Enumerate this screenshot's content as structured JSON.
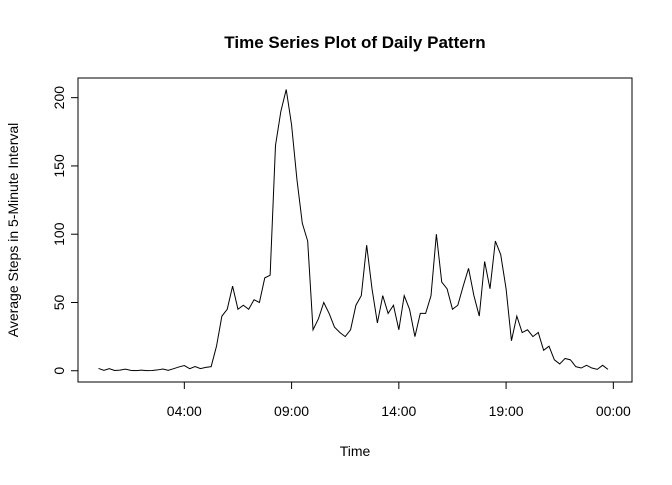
{
  "chart_data": {
    "type": "line",
    "title": "Time Series Plot of Daily Pattern",
    "x_label": "Time",
    "y_label": "Average Steps in 5-Minute Interval",
    "x": [
      0,
      0.25,
      0.5,
      0.75,
      1,
      1.25,
      1.5,
      1.75,
      2,
      2.25,
      2.5,
      2.75,
      3,
      3.25,
      3.5,
      3.75,
      4,
      4.25,
      4.5,
      4.75,
      5,
      5.25,
      5.5,
      5.75,
      6,
      6.25,
      6.5,
      6.75,
      7,
      7.25,
      7.5,
      7.75,
      8,
      8.25,
      8.5,
      8.75,
      9,
      9.25,
      9.5,
      9.75,
      10,
      10.25,
      10.5,
      10.75,
      11,
      11.25,
      11.5,
      11.75,
      12,
      12.25,
      12.5,
      12.75,
      13,
      13.25,
      13.5,
      13.75,
      14,
      14.25,
      14.5,
      14.75,
      15,
      15.25,
      15.5,
      15.75,
      16,
      16.25,
      16.5,
      16.75,
      17,
      17.25,
      17.5,
      17.75,
      18,
      18.25,
      18.5,
      18.75,
      19,
      19.25,
      19.5,
      19.75,
      20,
      20.25,
      20.5,
      20.75,
      21,
      21.25,
      21.5,
      21.75,
      22,
      22.25,
      22.5,
      22.75,
      23,
      23.25,
      23.5,
      23.75
    ],
    "series": [
      {
        "name": "steps",
        "color": "#000000",
        "values": [
          1.7,
          0.3,
          1.5,
          0.2,
          0.5,
          1.2,
          0.3,
          0.1,
          0.5,
          0.1,
          0.2,
          0.6,
          1.3,
          0.3,
          1.5,
          2.8,
          3.8,
          1.5,
          3.1,
          1.6,
          2.5,
          3,
          18,
          40,
          45,
          62,
          45,
          48,
          45,
          52,
          50,
          68,
          70,
          165,
          190,
          206,
          180,
          140,
          108,
          95,
          30,
          38,
          50,
          42,
          32,
          28,
          25,
          30,
          48,
          55,
          92,
          60,
          35,
          55,
          42,
          48,
          30,
          55,
          45,
          25,
          42,
          42,
          55,
          100,
          65,
          60,
          45,
          48,
          62,
          75,
          55,
          40,
          80,
          60,
          95,
          85,
          60,
          22,
          40,
          28,
          30,
          25,
          28,
          15,
          18,
          8,
          5,
          9,
          8,
          3,
          2,
          4,
          2,
          1,
          4,
          1
        ]
      }
    ],
    "xlim": [
      -0.957,
      24.87
    ],
    "ylim": [
      -8.24,
      214.4
    ],
    "xticks": [
      {
        "value": 4,
        "label": "04:00"
      },
      {
        "value": 9,
        "label": "09:00"
      },
      {
        "value": 14,
        "label": "14:00"
      },
      {
        "value": 19,
        "label": "19:00"
      },
      {
        "value": 24,
        "label": "00:00"
      }
    ],
    "yticks": [
      0,
      50,
      100,
      150,
      200
    ]
  }
}
